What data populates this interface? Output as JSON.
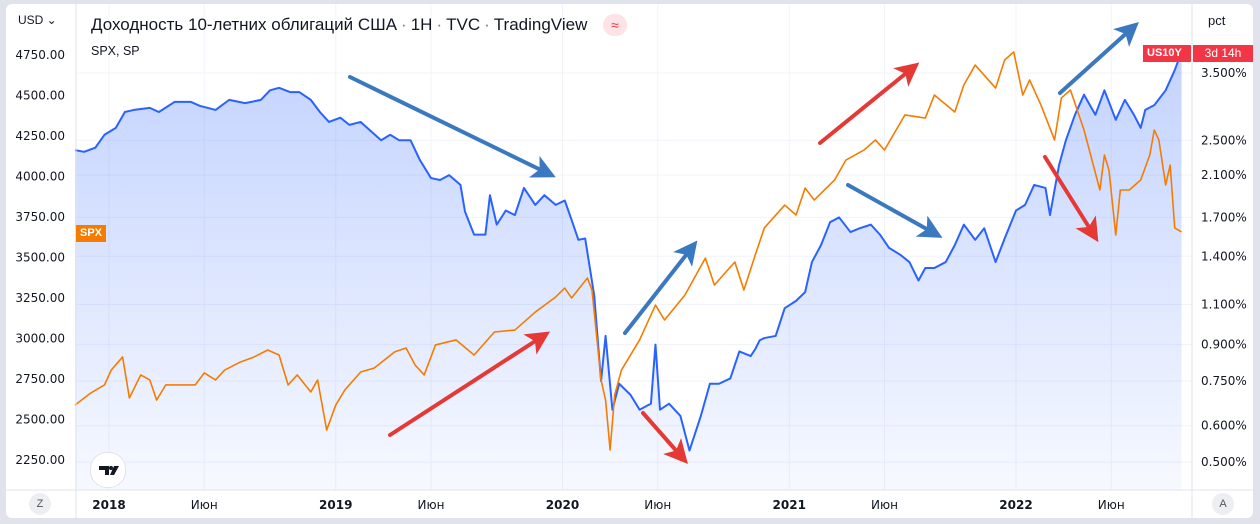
{
  "header": {
    "title_parts": [
      "Доходность 10-летних облигаций США",
      "1H",
      "TVC",
      "TradingView"
    ],
    "subtitle": "SPX, SP",
    "badge_icon": "≈"
  },
  "left_axis": {
    "unit_label": "USD ⌄",
    "series_tag": "SPX"
  },
  "right_axis": {
    "unit_label": "pct",
    "series_tag": "US10Y",
    "countdown": "3d 14h"
  },
  "buttons": {
    "z": "Z",
    "a": "A"
  },
  "colors": {
    "spx": "#f57c00",
    "us10y": "#2962ff",
    "arrow_blue": "#3a78c0",
    "arrow_red": "#e53935",
    "tag_red": "#f23645"
  },
  "chart_data": {
    "type": "line",
    "title": "Доходность 10-летних облигаций США · 1H · TVC · TradingView",
    "x_ticks": [
      {
        "t": 2018,
        "label": "2018",
        "bold": true
      },
      {
        "t": 2018.42,
        "label": "Июн"
      },
      {
        "t": 2019,
        "label": "2019",
        "bold": true
      },
      {
        "t": 2019.42,
        "label": "Июн"
      },
      {
        "t": 2020,
        "label": "2020",
        "bold": true
      },
      {
        "t": 2020.42,
        "label": "Июн"
      },
      {
        "t": 2021,
        "label": "2021",
        "bold": true
      },
      {
        "t": 2021.42,
        "label": "Июн"
      },
      {
        "t": 2022,
        "label": "2022",
        "bold": true
      },
      {
        "t": 2022.42,
        "label": "Июн"
      }
    ],
    "left_ticks": [
      "4750.00",
      "4500.00",
      "4250.00",
      "4000.00",
      "3750.00",
      "3500.00",
      "3250.00",
      "3000.00",
      "2750.00",
      "2500.00",
      "2250.00"
    ],
    "right_ticks": [
      "3.500%",
      "2.500%",
      "2.100%",
      "1.700%",
      "1.400%",
      "1.100%",
      "0.900%",
      "0.750%",
      "0.600%",
      "0.500%"
    ],
    "right_scale": "log",
    "series": [
      {
        "name": "SPX",
        "axis": "left",
        "color": "#f57c00",
        "points": [
          [
            2017.85,
            2590
          ],
          [
            2017.92,
            2665
          ],
          [
            2017.98,
            2714
          ],
          [
            2018.01,
            2806
          ],
          [
            2018.06,
            2887
          ],
          [
            2018.09,
            2634
          ],
          [
            2018.14,
            2776
          ],
          [
            2018.18,
            2745
          ],
          [
            2018.21,
            2621
          ],
          [
            2018.25,
            2714
          ],
          [
            2018.31,
            2714
          ],
          [
            2018.38,
            2714
          ],
          [
            2018.42,
            2788
          ],
          [
            2018.47,
            2745
          ],
          [
            2018.51,
            2806
          ],
          [
            2018.58,
            2856
          ],
          [
            2018.64,
            2887
          ],
          [
            2018.7,
            2930
          ],
          [
            2018.75,
            2899
          ],
          [
            2018.79,
            2714
          ],
          [
            2018.83,
            2776
          ],
          [
            2018.89,
            2671
          ],
          [
            2018.92,
            2745
          ],
          [
            2018.96,
            2436
          ],
          [
            2019.0,
            2590
          ],
          [
            2019.04,
            2683
          ],
          [
            2019.11,
            2794
          ],
          [
            2019.17,
            2819
          ],
          [
            2019.26,
            2918
          ],
          [
            2019.31,
            2942
          ],
          [
            2019.35,
            2837
          ],
          [
            2019.39,
            2776
          ],
          [
            2019.44,
            2961
          ],
          [
            2019.53,
            2992
          ],
          [
            2019.61,
            2899
          ],
          [
            2019.7,
            3041
          ],
          [
            2019.79,
            3053
          ],
          [
            2019.88,
            3164
          ],
          [
            2019.97,
            3257
          ],
          [
            2020.01,
            3312
          ],
          [
            2020.04,
            3251
          ],
          [
            2020.11,
            3374
          ],
          [
            2020.13,
            3300
          ],
          [
            2020.17,
            2745
          ],
          [
            2020.19,
            2621
          ],
          [
            2020.21,
            2313
          ],
          [
            2020.23,
            2652
          ],
          [
            2020.26,
            2806
          ],
          [
            2020.34,
            2992
          ],
          [
            2020.41,
            3207
          ],
          [
            2020.45,
            3115
          ],
          [
            2020.54,
            3269
          ],
          [
            2020.63,
            3497
          ],
          [
            2020.67,
            3331
          ],
          [
            2020.76,
            3473
          ],
          [
            2020.8,
            3300
          ],
          [
            2020.85,
            3516
          ],
          [
            2020.89,
            3683
          ],
          [
            2020.98,
            3824
          ],
          [
            2021.03,
            3763
          ],
          [
            2021.07,
            3929
          ],
          [
            2021.11,
            3855
          ],
          [
            2021.2,
            3979
          ],
          [
            2021.25,
            4102
          ],
          [
            2021.33,
            4164
          ],
          [
            2021.38,
            4226
          ],
          [
            2021.42,
            4164
          ],
          [
            2021.51,
            4380
          ],
          [
            2021.6,
            4361
          ],
          [
            2021.64,
            4503
          ],
          [
            2021.73,
            4398
          ],
          [
            2021.77,
            4565
          ],
          [
            2021.82,
            4688
          ],
          [
            2021.91,
            4546
          ],
          [
            2021.95,
            4719
          ],
          [
            2021.99,
            4769
          ],
          [
            2022.03,
            4503
          ],
          [
            2022.06,
            4596
          ],
          [
            2022.11,
            4441
          ],
          [
            2022.17,
            4226
          ],
          [
            2022.2,
            4485
          ],
          [
            2022.24,
            4534
          ],
          [
            2022.3,
            4287
          ],
          [
            2022.37,
            3917
          ],
          [
            2022.39,
            4133
          ],
          [
            2022.41,
            4040
          ],
          [
            2022.44,
            3639
          ],
          [
            2022.46,
            3917
          ],
          [
            2022.5,
            3917
          ],
          [
            2022.55,
            3979
          ],
          [
            2022.59,
            4133
          ],
          [
            2022.61,
            4287
          ],
          [
            2022.63,
            4226
          ],
          [
            2022.66,
            3948
          ],
          [
            2022.68,
            4071
          ],
          [
            2022.7,
            3683
          ],
          [
            2022.73,
            3658
          ]
        ]
      },
      {
        "name": "US10Y",
        "axis": "right",
        "color": "#2962ff",
        "points": [
          [
            2017.85,
            2.38
          ],
          [
            2017.89,
            2.36
          ],
          [
            2017.94,
            2.41
          ],
          [
            2017.98,
            2.57
          ],
          [
            2018.03,
            2.66
          ],
          [
            2018.07,
            2.88
          ],
          [
            2018.11,
            2.91
          ],
          [
            2018.18,
            2.94
          ],
          [
            2018.22,
            2.88
          ],
          [
            2018.29,
            3.03
          ],
          [
            2018.36,
            3.03
          ],
          [
            2018.4,
            2.97
          ],
          [
            2018.47,
            2.91
          ],
          [
            2018.53,
            3.06
          ],
          [
            2018.6,
            3.01
          ],
          [
            2018.67,
            3.06
          ],
          [
            2018.71,
            3.21
          ],
          [
            2018.75,
            3.25
          ],
          [
            2018.8,
            3.18
          ],
          [
            2018.84,
            3.18
          ],
          [
            2018.89,
            3.06
          ],
          [
            2018.93,
            2.88
          ],
          [
            2018.97,
            2.74
          ],
          [
            2019.02,
            2.8
          ],
          [
            2019.06,
            2.7
          ],
          [
            2019.11,
            2.74
          ],
          [
            2019.15,
            2.63
          ],
          [
            2019.2,
            2.5
          ],
          [
            2019.24,
            2.57
          ],
          [
            2019.28,
            2.5
          ],
          [
            2019.33,
            2.5
          ],
          [
            2019.37,
            2.27
          ],
          [
            2019.42,
            2.07
          ],
          [
            2019.46,
            2.05
          ],
          [
            2019.5,
            2.1
          ],
          [
            2019.55,
            2.0
          ],
          [
            2019.57,
            1.75
          ],
          [
            2019.61,
            1.56
          ],
          [
            2019.66,
            1.56
          ],
          [
            2019.68,
            1.9
          ],
          [
            2019.71,
            1.64
          ],
          [
            2019.75,
            1.76
          ],
          [
            2019.79,
            1.72
          ],
          [
            2019.83,
            1.97
          ],
          [
            2019.88,
            1.81
          ],
          [
            2019.92,
            1.9
          ],
          [
            2019.97,
            1.81
          ],
          [
            2020.01,
            1.85
          ],
          [
            2020.04,
            1.68
          ],
          [
            2020.07,
            1.52
          ],
          [
            2020.1,
            1.53
          ],
          [
            2020.14,
            1.15
          ],
          [
            2020.17,
            0.75
          ],
          [
            2020.19,
            0.94
          ],
          [
            2020.22,
            0.65
          ],
          [
            2020.25,
            0.74
          ],
          [
            2020.3,
            0.7
          ],
          [
            2020.34,
            0.65
          ],
          [
            2020.39,
            0.67
          ],
          [
            2020.41,
            0.9
          ],
          [
            2020.43,
            0.65
          ],
          [
            2020.47,
            0.67
          ],
          [
            2020.52,
            0.63
          ],
          [
            2020.56,
            0.53
          ],
          [
            2020.61,
            0.63
          ],
          [
            2020.65,
            0.74
          ],
          [
            2020.69,
            0.74
          ],
          [
            2020.74,
            0.76
          ],
          [
            2020.78,
            0.87
          ],
          [
            2020.83,
            0.85
          ],
          [
            2020.85,
            0.88
          ],
          [
            2020.87,
            0.92
          ],
          [
            2020.89,
            0.93
          ],
          [
            2020.94,
            0.94
          ],
          [
            2020.98,
            1.08
          ],
          [
            2021.03,
            1.12
          ],
          [
            2021.07,
            1.17
          ],
          [
            2021.1,
            1.36
          ],
          [
            2021.14,
            1.48
          ],
          [
            2021.18,
            1.66
          ],
          [
            2021.22,
            1.7
          ],
          [
            2021.27,
            1.58
          ],
          [
            2021.31,
            1.61
          ],
          [
            2021.36,
            1.64
          ],
          [
            2021.4,
            1.56
          ],
          [
            2021.44,
            1.46
          ],
          [
            2021.49,
            1.41
          ],
          [
            2021.53,
            1.36
          ],
          [
            2021.57,
            1.24
          ],
          [
            2021.6,
            1.32
          ],
          [
            2021.64,
            1.32
          ],
          [
            2021.69,
            1.36
          ],
          [
            2021.73,
            1.48
          ],
          [
            2021.77,
            1.64
          ],
          [
            2021.82,
            1.52
          ],
          [
            2021.86,
            1.61
          ],
          [
            2021.91,
            1.36
          ],
          [
            2021.95,
            1.53
          ],
          [
            2022.0,
            1.76
          ],
          [
            2022.04,
            1.81
          ],
          [
            2022.08,
            2.0
          ],
          [
            2022.13,
            1.97
          ],
          [
            2022.15,
            1.72
          ],
          [
            2022.19,
            2.21
          ],
          [
            2022.22,
            2.5
          ],
          [
            2022.26,
            2.84
          ],
          [
            2022.3,
            3.14
          ],
          [
            2022.35,
            2.84
          ],
          [
            2022.39,
            3.21
          ],
          [
            2022.44,
            2.77
          ],
          [
            2022.48,
            3.06
          ],
          [
            2022.52,
            2.84
          ],
          [
            2022.55,
            2.66
          ],
          [
            2022.57,
            2.91
          ],
          [
            2022.61,
            2.98
          ],
          [
            2022.66,
            3.21
          ],
          [
            2022.7,
            3.55
          ],
          [
            2022.73,
            3.89
          ]
        ]
      }
    ],
    "left_ylim": [
      2120,
      4800
    ],
    "right_ylim": [
      0.46,
      3.95
    ],
    "grid": true
  }
}
